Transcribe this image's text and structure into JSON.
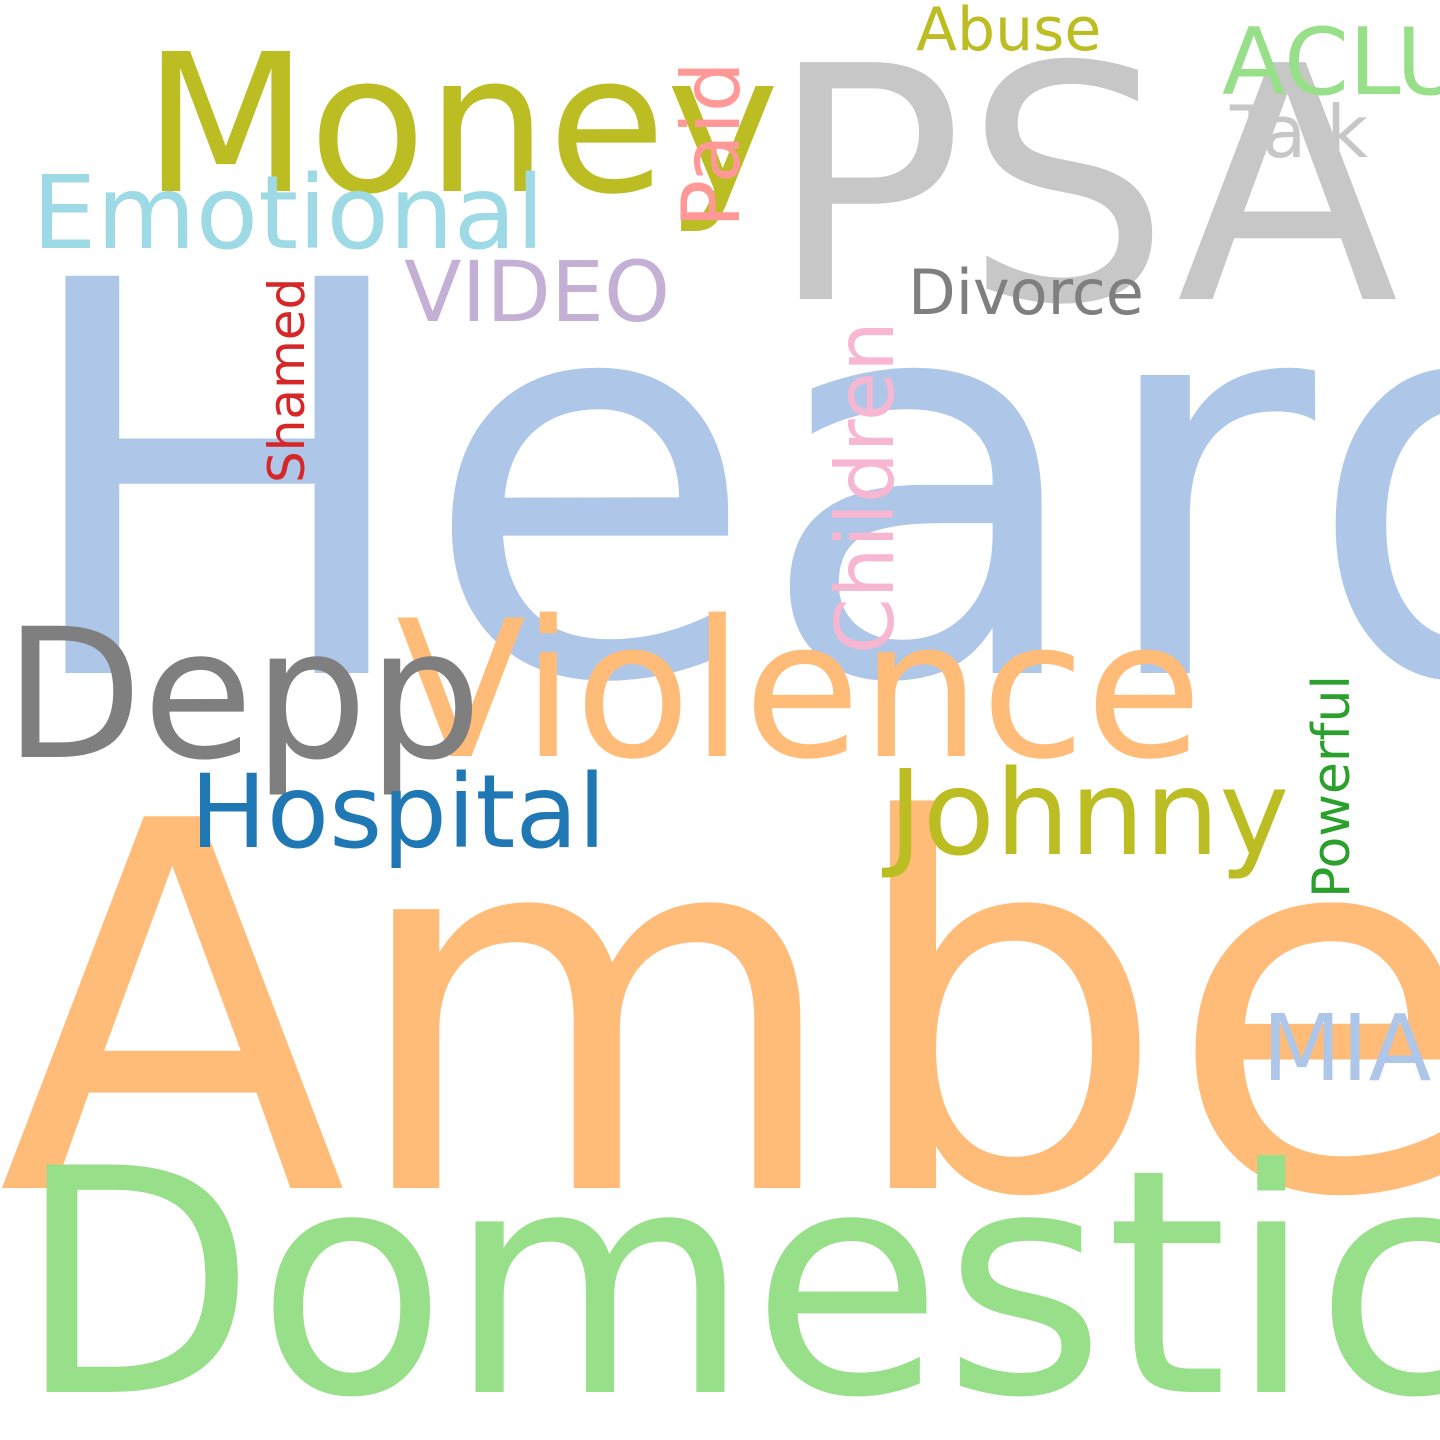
{
  "word_cloud": {
    "background": "#ffffff",
    "words": [
      {
        "id": "heard",
        "text": "Heard",
        "color": "#aec7e8",
        "orientation": "horizontal"
      },
      {
        "id": "amber",
        "text": "Amber",
        "color": "#ffbb78",
        "orientation": "horizontal"
      },
      {
        "id": "domestic",
        "text": "Domestic",
        "color": "#98df8a",
        "orientation": "horizontal"
      },
      {
        "id": "psa",
        "text": "PSA",
        "color": "#c7c7c7",
        "orientation": "horizontal"
      },
      {
        "id": "money",
        "text": "Money",
        "color": "#bcbd22",
        "orientation": "horizontal"
      },
      {
        "id": "violence",
        "text": "Violence",
        "color": "#ffbb78",
        "orientation": "horizontal"
      },
      {
        "id": "depp",
        "text": "Depp",
        "color": "#7f7f7f",
        "orientation": "horizontal"
      },
      {
        "id": "johnny",
        "text": "Johnny",
        "color": "#bcbd22",
        "orientation": "horizontal"
      },
      {
        "id": "hospital",
        "text": "Hospital",
        "color": "#1f77b4",
        "orientation": "horizontal"
      },
      {
        "id": "emotional",
        "text": "Emotional",
        "color": "#9edae5",
        "orientation": "horizontal"
      },
      {
        "id": "mia",
        "text": "MIA",
        "color": "#aec7e8",
        "orientation": "horizontal"
      },
      {
        "id": "aclu",
        "text": "ACLU",
        "color": "#98df8a",
        "orientation": "horizontal"
      },
      {
        "id": "talk",
        "text": "Talk",
        "color": "#c7c7c7",
        "orientation": "horizontal"
      },
      {
        "id": "video",
        "text": "VIDEO",
        "color": "#c5b0d5",
        "orientation": "horizontal"
      },
      {
        "id": "divorce",
        "text": "Divorce",
        "color": "#7f7f7f",
        "orientation": "horizontal"
      },
      {
        "id": "abuse",
        "text": "Abuse",
        "color": "#bcbd22",
        "orientation": "horizontal"
      },
      {
        "id": "paid",
        "text": "Paid",
        "color": "#ff9896",
        "orientation": "vertical"
      },
      {
        "id": "children",
        "text": "Children",
        "color": "#f7b6d2",
        "orientation": "vertical"
      },
      {
        "id": "shamed",
        "text": "Shamed",
        "color": "#d62728",
        "orientation": "vertical"
      },
      {
        "id": "powerful",
        "text": "Powerful",
        "color": "#2ca02c",
        "orientation": "vertical"
      }
    ]
  }
}
